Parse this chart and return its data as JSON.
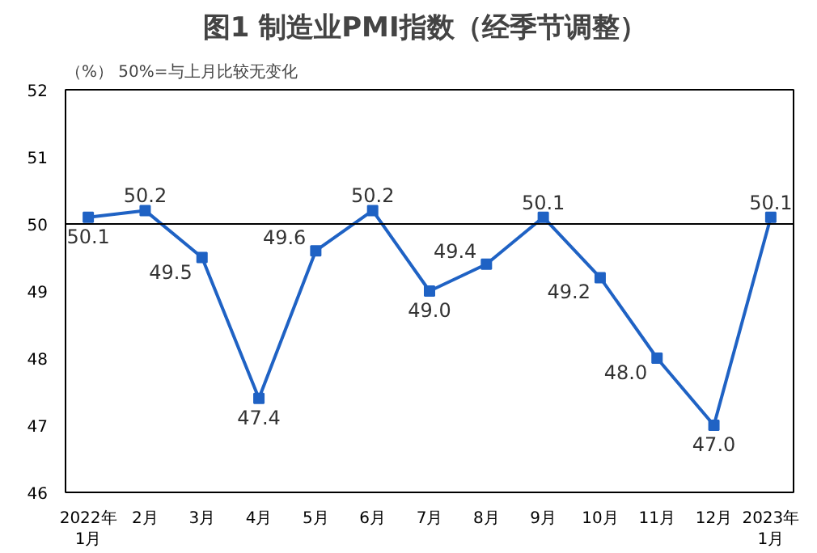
{
  "chart_data": {
    "type": "line",
    "title": "图1  制造业PMI指数（经季节调整）",
    "ylabel": "（%）",
    "annotations": [
      "50%=与上月比较无变化"
    ],
    "categories": [
      "2022年\n1月",
      "2月",
      "3月",
      "4月",
      "5月",
      "6月",
      "7月",
      "8月",
      "9月",
      "10月",
      "11月",
      "12月",
      "2023年\n1月"
    ],
    "series": [
      {
        "color": "#1f62c4",
        "values": [
          50.1,
          50.2,
          49.5,
          47.4,
          49.6,
          50.2,
          49.0,
          49.4,
          50.1,
          49.2,
          48.0,
          47.0,
          50.1
        ]
      }
    ],
    "value_labels": [
      "50.1",
      "50.2",
      "49.5",
      "47.4",
      "49.6",
      "50.2",
      "49.0",
      "49.4",
      "50.1",
      "49.2",
      "48.0",
      "47.0",
      "50.1"
    ],
    "ylim": [
      46,
      52
    ],
    "yticks": [
      46,
      47,
      48,
      49,
      50,
      51,
      52
    ],
    "ref_lines": [
      {
        "axis": "y",
        "value": 50,
        "color": "#000000"
      }
    ],
    "marker": "square",
    "grid": false
  }
}
